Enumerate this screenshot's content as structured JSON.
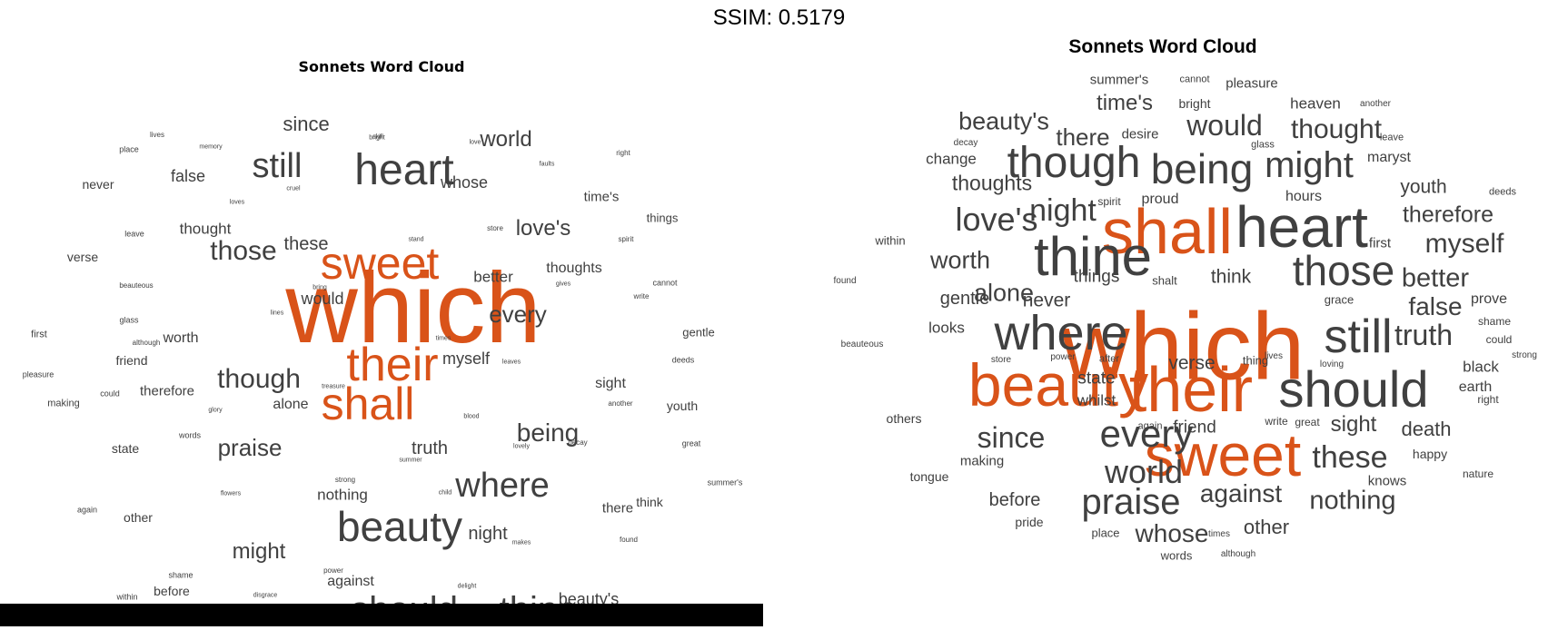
{
  "header": {
    "ssim_label": "SSIM: 0.5179"
  },
  "colors": {
    "highlight": "#D95319",
    "text": "#404040",
    "bar": "#000000"
  },
  "chart_data": [
    {
      "type": "wordcloud",
      "title": "Sonnets Word Cloud",
      "highlight_words": [
        "which",
        "their",
        "shall",
        "sweet"
      ],
      "words": [
        {
          "text": "which",
          "size": 110
        },
        {
          "text": "sweet",
          "size": 50
        },
        {
          "text": "their",
          "size": 52
        },
        {
          "text": "shall",
          "size": 50
        },
        {
          "text": "heart",
          "size": 48
        },
        {
          "text": "beauty",
          "size": 46
        },
        {
          "text": "should",
          "size": 40
        },
        {
          "text": "thine",
          "size": 40
        },
        {
          "text": "where",
          "size": 38
        },
        {
          "text": "still",
          "size": 38
        },
        {
          "text": "though",
          "size": 30
        },
        {
          "text": "those",
          "size": 30
        },
        {
          "text": "being",
          "size": 28
        },
        {
          "text": "praise",
          "size": 26
        },
        {
          "text": "might",
          "size": 24
        },
        {
          "text": "every",
          "size": 26
        },
        {
          "text": "world",
          "size": 24
        },
        {
          "text": "love's",
          "size": 24
        },
        {
          "text": "since",
          "size": 22
        },
        {
          "text": "these",
          "size": 20
        },
        {
          "text": "whose",
          "size": 18
        },
        {
          "text": "night",
          "size": 20
        },
        {
          "text": "truth",
          "size": 20
        },
        {
          "text": "myself",
          "size": 18
        },
        {
          "text": "beauty's",
          "size": 18
        },
        {
          "text": "false",
          "size": 18
        },
        {
          "text": "thought",
          "size": 17
        },
        {
          "text": "would",
          "size": 18
        },
        {
          "text": "better",
          "size": 17
        },
        {
          "text": "thoughts",
          "size": 16
        },
        {
          "text": "nothing",
          "size": 17
        },
        {
          "text": "against",
          "size": 16
        },
        {
          "text": "alone",
          "size": 16
        },
        {
          "text": "worth",
          "size": 16
        },
        {
          "text": "sight",
          "size": 16
        },
        {
          "text": "time's",
          "size": 15
        },
        {
          "text": "therefore",
          "size": 15
        },
        {
          "text": "never",
          "size": 14
        },
        {
          "text": "verse",
          "size": 14
        },
        {
          "text": "youth",
          "size": 14
        },
        {
          "text": "friend",
          "size": 14
        },
        {
          "text": "state",
          "size": 14
        },
        {
          "text": "other",
          "size": 14
        },
        {
          "text": "before",
          "size": 14
        },
        {
          "text": "there",
          "size": 15
        },
        {
          "text": "think",
          "size": 14
        },
        {
          "text": "things",
          "size": 13
        },
        {
          "text": "gentle",
          "size": 13
        },
        {
          "text": "place",
          "size": 9
        },
        {
          "text": "lives",
          "size": 8
        },
        {
          "text": "memory",
          "size": 7
        },
        {
          "text": "skill",
          "size": 7
        },
        {
          "text": "love",
          "size": 7
        },
        {
          "text": "right",
          "size": 8
        },
        {
          "text": "faults",
          "size": 7
        },
        {
          "text": "cruel",
          "size": 7
        },
        {
          "text": "loves",
          "size": 7
        },
        {
          "text": "leave",
          "size": 9
        },
        {
          "text": "store",
          "size": 8
        },
        {
          "text": "stand",
          "size": 7
        },
        {
          "text": "spirit",
          "size": 8
        },
        {
          "text": "beauteous",
          "size": 8
        },
        {
          "text": "bring",
          "size": 7
        },
        {
          "text": "gives",
          "size": 7
        },
        {
          "text": "cannot",
          "size": 9
        },
        {
          "text": "write",
          "size": 8
        },
        {
          "text": "glass",
          "size": 9
        },
        {
          "text": "lines",
          "size": 7
        },
        {
          "text": "although",
          "size": 8
        },
        {
          "text": "times",
          "size": 7
        },
        {
          "text": "first",
          "size": 11
        },
        {
          "text": "deeds",
          "size": 9
        },
        {
          "text": "leaves",
          "size": 7
        },
        {
          "text": "pleasure",
          "size": 9
        },
        {
          "text": "could",
          "size": 9
        },
        {
          "text": "making",
          "size": 11
        },
        {
          "text": "treasure",
          "size": 7
        },
        {
          "text": "another",
          "size": 8
        },
        {
          "text": "glory",
          "size": 7
        },
        {
          "text": "blood",
          "size": 7
        },
        {
          "text": "words",
          "size": 9
        },
        {
          "text": "lovely",
          "size": 7
        },
        {
          "text": "decay",
          "size": 8
        },
        {
          "text": "great",
          "size": 9
        },
        {
          "text": "summer",
          "size": 7
        },
        {
          "text": "strong",
          "size": 8
        },
        {
          "text": "summer's",
          "size": 9
        },
        {
          "text": "flowers",
          "size": 7
        },
        {
          "text": "child",
          "size": 7
        },
        {
          "text": "again",
          "size": 9
        },
        {
          "text": "makes",
          "size": 7
        },
        {
          "text": "found",
          "size": 8
        },
        {
          "text": "shame",
          "size": 9
        },
        {
          "text": "power",
          "size": 8
        },
        {
          "text": "delight",
          "size": 7
        },
        {
          "text": "within",
          "size": 9
        },
        {
          "text": "disgrace",
          "size": 7
        },
        {
          "text": "bright",
          "size": 7
        }
      ]
    },
    {
      "type": "wordcloud",
      "title": "Sonnets Word Cloud",
      "highlight_words": [
        "which",
        "shall",
        "their",
        "beauty",
        "sweet"
      ],
      "words": [
        {
          "text": "which",
          "size": 105
        },
        {
          "text": "shall",
          "size": 70
        },
        {
          "text": "their",
          "size": 70
        },
        {
          "text": "beauty",
          "size": 66
        },
        {
          "text": "sweet",
          "size": 66
        },
        {
          "text": "heart",
          "size": 64
        },
        {
          "text": "thine",
          "size": 60
        },
        {
          "text": "where",
          "size": 54
        },
        {
          "text": "should",
          "size": 56
        },
        {
          "text": "still",
          "size": 52
        },
        {
          "text": "though",
          "size": 48
        },
        {
          "text": "being",
          "size": 46
        },
        {
          "text": "those",
          "size": 46
        },
        {
          "text": "might",
          "size": 40
        },
        {
          "text": "every",
          "size": 42
        },
        {
          "text": "praise",
          "size": 40
        },
        {
          "text": "love's",
          "size": 36
        },
        {
          "text": "world",
          "size": 36
        },
        {
          "text": "night",
          "size": 34
        },
        {
          "text": "these",
          "size": 34
        },
        {
          "text": "since",
          "size": 32
        },
        {
          "text": "would",
          "size": 32
        },
        {
          "text": "thought",
          "size": 30
        },
        {
          "text": "truth",
          "size": 32
        },
        {
          "text": "nothing",
          "size": 29
        },
        {
          "text": "against",
          "size": 28
        },
        {
          "text": "beauty's",
          "size": 27
        },
        {
          "text": "myself",
          "size": 30
        },
        {
          "text": "better",
          "size": 29
        },
        {
          "text": "false",
          "size": 28
        },
        {
          "text": "alone",
          "size": 27
        },
        {
          "text": "worth",
          "size": 27
        },
        {
          "text": "there",
          "size": 26
        },
        {
          "text": "whose",
          "size": 28
        },
        {
          "text": "time's",
          "size": 24
        },
        {
          "text": "therefore",
          "size": 25
        },
        {
          "text": "sight",
          "size": 24
        },
        {
          "text": "thoughts",
          "size": 23
        },
        {
          "text": "death",
          "size": 22
        },
        {
          "text": "other",
          "size": 22
        },
        {
          "text": "youth",
          "size": 21
        },
        {
          "text": "never",
          "size": 21
        },
        {
          "text": "verse",
          "size": 21
        },
        {
          "text": "before",
          "size": 20
        },
        {
          "text": "gentle",
          "size": 20
        },
        {
          "text": "state",
          "size": 19
        },
        {
          "text": "friend",
          "size": 19
        },
        {
          "text": "think",
          "size": 21
        },
        {
          "text": "things",
          "size": 19
        },
        {
          "text": "black",
          "size": 17
        },
        {
          "text": "whilst",
          "size": 17
        },
        {
          "text": "change",
          "size": 17
        },
        {
          "text": "looks",
          "size": 17
        },
        {
          "text": "earth",
          "size": 16
        },
        {
          "text": "proud",
          "size": 16
        },
        {
          "text": "hours",
          "size": 16
        },
        {
          "text": "desire",
          "size": 15
        },
        {
          "text": "pleasure",
          "size": 15
        },
        {
          "text": "summer's",
          "size": 15
        },
        {
          "text": "heaven",
          "size": 17
        },
        {
          "text": "prove",
          "size": 16
        },
        {
          "text": "maryst",
          "size": 16
        },
        {
          "text": "knows",
          "size": 15
        },
        {
          "text": "first",
          "size": 15
        },
        {
          "text": "making",
          "size": 15
        },
        {
          "text": "tongue",
          "size": 14
        },
        {
          "text": "pride",
          "size": 14
        },
        {
          "text": "place",
          "size": 13
        },
        {
          "text": "others",
          "size": 14
        },
        {
          "text": "within",
          "size": 13
        },
        {
          "text": "grace",
          "size": 13
        },
        {
          "text": "happy",
          "size": 14
        },
        {
          "text": "bright",
          "size": 14
        },
        {
          "text": "words",
          "size": 13
        },
        {
          "text": "cannot",
          "size": 11
        },
        {
          "text": "glass",
          "size": 11
        },
        {
          "text": "leave",
          "size": 11
        },
        {
          "text": "decay",
          "size": 10
        },
        {
          "text": "spirit",
          "size": 12
        },
        {
          "text": "shalt",
          "size": 13
        },
        {
          "text": "shame",
          "size": 12
        },
        {
          "text": "could",
          "size": 12
        },
        {
          "text": "strong",
          "size": 10
        },
        {
          "text": "after",
          "size": 11
        },
        {
          "text": "thing",
          "size": 13
        },
        {
          "text": "lives",
          "size": 10
        },
        {
          "text": "loving",
          "size": 10
        },
        {
          "text": "store",
          "size": 10
        },
        {
          "text": "power",
          "size": 10
        },
        {
          "text": "right",
          "size": 12
        },
        {
          "text": "nature",
          "size": 12
        },
        {
          "text": "great",
          "size": 12
        },
        {
          "text": "write",
          "size": 12
        },
        {
          "text": "again",
          "size": 11
        },
        {
          "text": "times",
          "size": 10
        },
        {
          "text": "although",
          "size": 10
        },
        {
          "text": "another",
          "size": 10
        },
        {
          "text": "deeds",
          "size": 11
        },
        {
          "text": "found",
          "size": 10
        },
        {
          "text": "beauteous",
          "size": 10
        }
      ]
    }
  ]
}
